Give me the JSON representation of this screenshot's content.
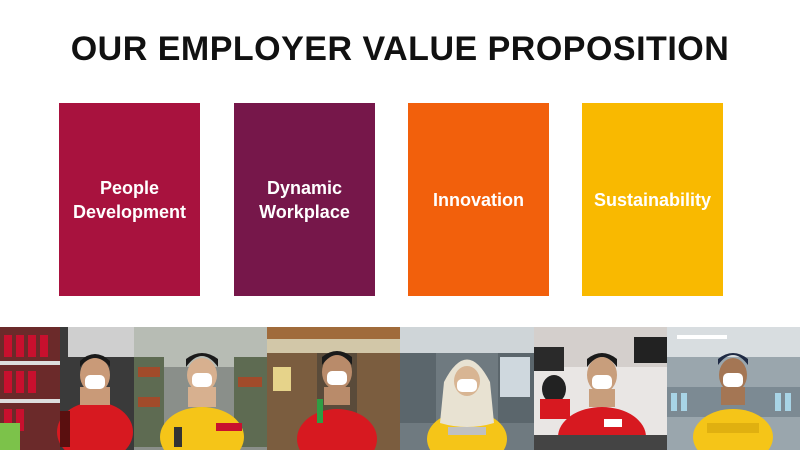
{
  "title": "OUR EMPLOYER VALUE PROPOSITION",
  "pillars": [
    {
      "line1": "People",
      "line2": "Development",
      "color": "#A8123E"
    },
    {
      "line1": "Dynamic",
      "line2": "Workplace",
      "color": "#76174A"
    },
    {
      "line1": "Innovation",
      "line2": "",
      "color": "#F2600C"
    },
    {
      "line1": "Sustainability",
      "line2": "",
      "color": "#F9B900"
    }
  ],
  "photos": [
    {
      "name": "employee-store-shelf",
      "shirt": "#D71920"
    },
    {
      "name": "employee-warehouse",
      "shirt": "#F5C518"
    },
    {
      "name": "employee-shop-front",
      "shirt": "#D71920"
    },
    {
      "name": "employee-hijab-office",
      "shirt": "#F5C518"
    },
    {
      "name": "employee-call-center",
      "shirt": "#D71920"
    },
    {
      "name": "employee-factory-line",
      "shirt": "#F5C518"
    }
  ]
}
